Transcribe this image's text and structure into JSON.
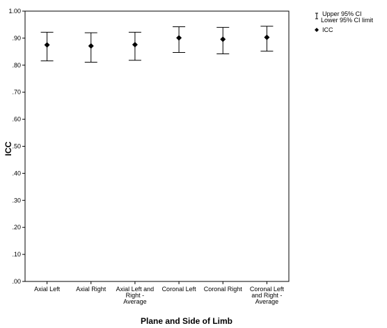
{
  "chart_data": {
    "type": "scatter",
    "xlabel": "Plane and Side of Limb",
    "ylabel": "ICC",
    "ylim": [
      0,
      1
    ],
    "yticks": [
      {
        "value": 0.0,
        "label": ".00"
      },
      {
        "value": 0.1,
        "label": ".10"
      },
      {
        "value": 0.2,
        "label": ".20"
      },
      {
        "value": 0.3,
        "label": ".30"
      },
      {
        "value": 0.4,
        "label": ".40"
      },
      {
        "value": 0.5,
        "label": ".50"
      },
      {
        "value": 0.6,
        "label": ".60"
      },
      {
        "value": 0.7,
        "label": ".70"
      },
      {
        "value": 0.8,
        "label": ".80"
      },
      {
        "value": 0.9,
        "label": ".90"
      },
      {
        "value": 1.0,
        "label": "1.00"
      }
    ],
    "categories": [
      [
        "Axial Left"
      ],
      [
        "Axial Right"
      ],
      [
        "Axial Left and",
        "Right -",
        "Average"
      ],
      [
        "Coronal Left"
      ],
      [
        "Coronal Right"
      ],
      [
        "Coronal Left",
        "and Right -",
        "Average"
      ]
    ],
    "points": [
      {
        "icc": 0.875,
        "lower": 0.816,
        "upper": 0.922
      },
      {
        "icc": 0.871,
        "lower": 0.811,
        "upper": 0.92
      },
      {
        "icc": 0.876,
        "lower": 0.818,
        "upper": 0.922
      },
      {
        "icc": 0.901,
        "lower": 0.847,
        "upper": 0.942
      },
      {
        "icc": 0.896,
        "lower": 0.842,
        "upper": 0.94
      },
      {
        "icc": 0.903,
        "lower": 0.852,
        "upper": 0.944
      }
    ],
    "legend": {
      "placement": "top-right",
      "items": [
        {
          "name": "Upper 95% CI",
          "name2": "Lower 95% CI limit",
          "symbol": "error-bar"
        },
        {
          "name": "ICC",
          "symbol": "diamond"
        }
      ]
    },
    "grid": false,
    "colors": {
      "marker": "#000000",
      "axis": "#000000",
      "background": "#ffffff"
    }
  }
}
